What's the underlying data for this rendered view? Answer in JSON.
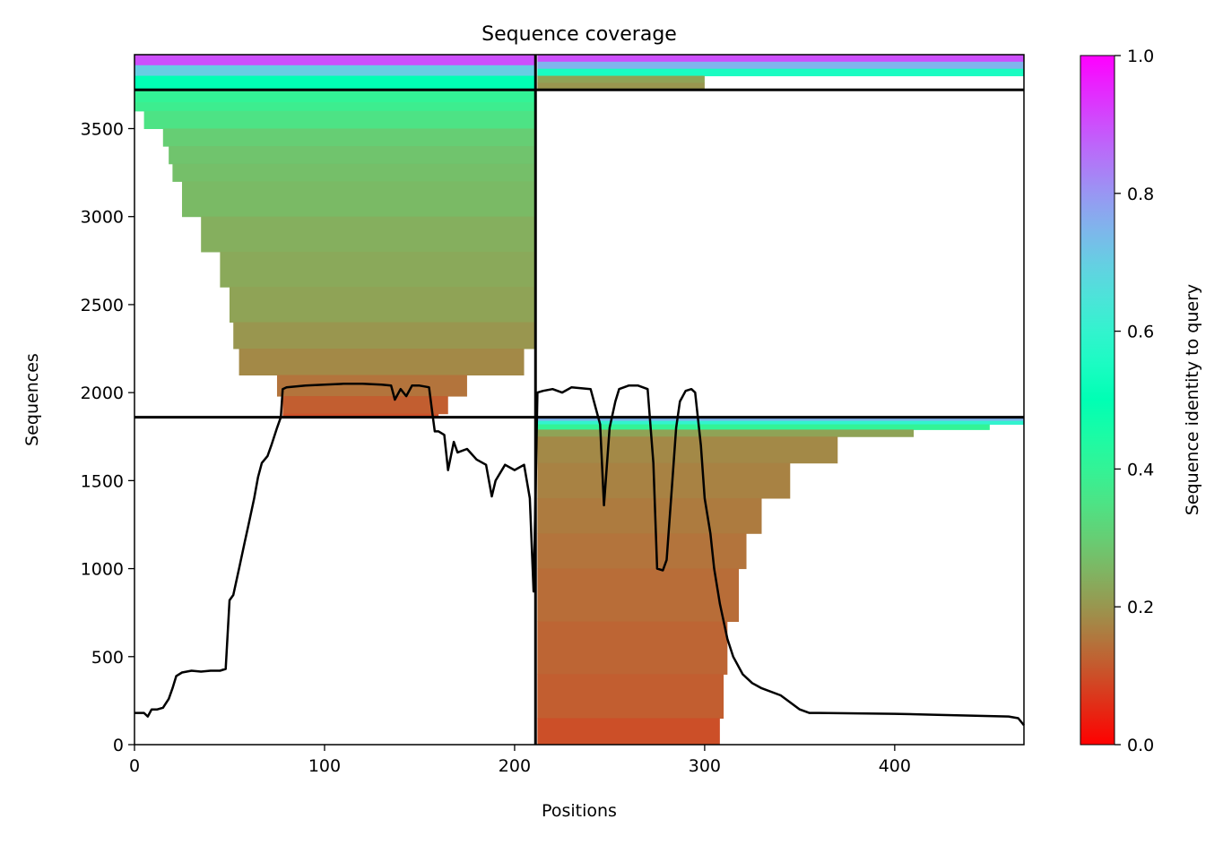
{
  "chart_data": {
    "type": "heatmap",
    "title": "Sequence coverage",
    "xlabel": "Positions",
    "ylabel": "Sequences",
    "xlim": [
      0,
      468
    ],
    "ylim": [
      0,
      3920
    ],
    "x_ticks": [
      0,
      100,
      200,
      300,
      400
    ],
    "y_ticks": [
      0,
      500,
      1000,
      1500,
      2000,
      2500,
      3000,
      3500
    ],
    "grid": false,
    "colorbar": {
      "label": "Sequence identity to query",
      "colormap": "rainbow_r",
      "range": [
        0.0,
        1.0
      ],
      "ticks": [
        0.0,
        0.2,
        0.4,
        0.6,
        0.8,
        1.0
      ]
    },
    "divider_lines": {
      "vertical_x": 211,
      "horizontal_y": [
        1860,
        3720
      ]
    },
    "coverage_blocks": [
      {
        "name": "block-1",
        "x_range": [
          0,
          211
        ],
        "y_range": [
          1860,
          3920
        ],
        "rows": [
          {
            "y": 3920,
            "start": 0,
            "end": 211,
            "identity": 0.9
          },
          {
            "y": 3860,
            "start": 0,
            "end": 211,
            "identity": 0.7
          },
          {
            "y": 3800,
            "start": 0,
            "end": 211,
            "identity": 0.5
          },
          {
            "y": 3720,
            "start": 0,
            "end": 211,
            "identity": 0.4
          },
          {
            "y": 3650,
            "start": 0,
            "end": 211,
            "identity": 0.38
          },
          {
            "y": 3600,
            "start": 5,
            "end": 211,
            "identity": 0.35
          },
          {
            "y": 3500,
            "start": 15,
            "end": 211,
            "identity": 0.3
          },
          {
            "y": 3400,
            "start": 18,
            "end": 211,
            "identity": 0.28
          },
          {
            "y": 3300,
            "start": 20,
            "end": 211,
            "identity": 0.27
          },
          {
            "y": 3200,
            "start": 25,
            "end": 211,
            "identity": 0.26
          },
          {
            "y": 3000,
            "start": 35,
            "end": 211,
            "identity": 0.24
          },
          {
            "y": 2800,
            "start": 45,
            "end": 211,
            "identity": 0.23
          },
          {
            "y": 2600,
            "start": 50,
            "end": 211,
            "identity": 0.22
          },
          {
            "y": 2400,
            "start": 52,
            "end": 211,
            "identity": 0.2
          },
          {
            "y": 2250,
            "start": 55,
            "end": 205,
            "identity": 0.18
          },
          {
            "y": 2100,
            "start": 75,
            "end": 175,
            "identity": 0.15
          },
          {
            "y": 1980,
            "start": 78,
            "end": 165,
            "identity": 0.12
          },
          {
            "y": 1880,
            "start": 78,
            "end": 160,
            "identity": 0.1
          }
        ]
      },
      {
        "name": "block-2",
        "x_range": [
          211,
          468
        ],
        "y_range": [
          0,
          1860
        ],
        "rows": [
          {
            "y": 1860,
            "start": 212,
            "end": 468,
            "identity": 0.75
          },
          {
            "y": 1840,
            "start": 212,
            "end": 468,
            "identity": 0.6
          },
          {
            "y": 1820,
            "start": 212,
            "end": 450,
            "identity": 0.4
          },
          {
            "y": 1790,
            "start": 212,
            "end": 410,
            "identity": 0.22
          },
          {
            "y": 1750,
            "start": 212,
            "end": 370,
            "identity": 0.18
          },
          {
            "y": 1600,
            "start": 212,
            "end": 345,
            "identity": 0.17
          },
          {
            "y": 1400,
            "start": 212,
            "end": 330,
            "identity": 0.16
          },
          {
            "y": 1200,
            "start": 212,
            "end": 322,
            "identity": 0.15
          },
          {
            "y": 1000,
            "start": 212,
            "end": 318,
            "identity": 0.14
          },
          {
            "y": 700,
            "start": 212,
            "end": 312,
            "identity": 0.13
          },
          {
            "y": 400,
            "start": 212,
            "end": 310,
            "identity": 0.12
          },
          {
            "y": 150,
            "start": 212,
            "end": 308,
            "identity": 0.1
          },
          {
            "y": 0,
            "start": 212,
            "end": 305,
            "identity": 0.08
          }
        ]
      },
      {
        "name": "block-3",
        "x_range": [
          211,
          468
        ],
        "y_range": [
          3720,
          3920
        ],
        "rows": [
          {
            "y": 3920,
            "start": 212,
            "end": 468,
            "identity": 0.9
          },
          {
            "y": 3880,
            "start": 212,
            "end": 468,
            "identity": 0.75
          },
          {
            "y": 3840,
            "start": 212,
            "end": 468,
            "identity": 0.55
          },
          {
            "y": 3800,
            "start": 212,
            "end": 300,
            "identity": 0.22
          },
          {
            "y": 3760,
            "start": 212,
            "end": 300,
            "identity": 0.2
          }
        ]
      }
    ],
    "series": [
      {
        "type": "line",
        "x": [
          0,
          5,
          7,
          9,
          12,
          15,
          18,
          20,
          22,
          25,
          30,
          35,
          40,
          45,
          48,
          50,
          52,
          55,
          58,
          60,
          63,
          65,
          67,
          70,
          72,
          75,
          77,
          78,
          80,
          90,
          100,
          110,
          120,
          130,
          135,
          137,
          140,
          143,
          146,
          150,
          155,
          157,
          158,
          160,
          163,
          165,
          168,
          170,
          175,
          180,
          185,
          188,
          190,
          195,
          200,
          205,
          208,
          210,
          211,
          212,
          215,
          220,
          225,
          230,
          240,
          245,
          247,
          250,
          253,
          255,
          260,
          265,
          270,
          273,
          275,
          278,
          280,
          283,
          285,
          287,
          290,
          293,
          295,
          298,
          300,
          303,
          305,
          308,
          312,
          315,
          320,
          325,
          330,
          340,
          350,
          355,
          360,
          400,
          420,
          440,
          460,
          465,
          468
        ],
        "y": [
          180,
          180,
          160,
          200,
          200,
          210,
          260,
          320,
          390,
          410,
          420,
          415,
          420,
          420,
          430,
          820,
          850,
          1000,
          1150,
          1250,
          1400,
          1520,
          1600,
          1640,
          1700,
          1800,
          1860,
          2020,
          2030,
          2040,
          2045,
          2050,
          2050,
          2045,
          2040,
          1960,
          2020,
          1980,
          2040,
          2040,
          2030,
          1860,
          1780,
          1780,
          1760,
          1560,
          1720,
          1660,
          1680,
          1620,
          1590,
          1410,
          1500,
          1590,
          1560,
          1590,
          1400,
          870,
          1400,
          2000,
          2010,
          2020,
          2000,
          2030,
          2020,
          1820,
          1360,
          1800,
          1950,
          2020,
          2040,
          2040,
          2020,
          1600,
          1000,
          990,
          1050,
          1500,
          1800,
          1950,
          2010,
          2020,
          2000,
          1700,
          1400,
          1200,
          1000,
          800,
          600,
          500,
          400,
          350,
          320,
          280,
          200,
          180,
          180,
          175,
          170,
          165,
          160,
          150,
          110
        ]
      }
    ]
  }
}
